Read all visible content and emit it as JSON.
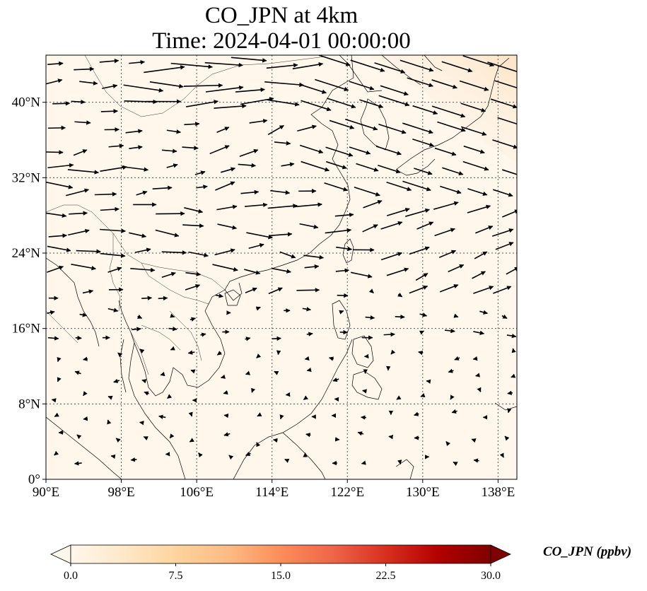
{
  "title_line1": "CO_JPN at 4km",
  "title_line2": "Time: 2024-04-01 00:00:00",
  "map": {
    "projection": "PlateCarree",
    "lon_range": [
      90,
      140
    ],
    "lat_range": [
      0,
      45
    ],
    "gridlines": "dotted",
    "lon_ticks": [
      {
        "value": 90,
        "label": "90°E"
      },
      {
        "value": 98,
        "label": "98°E"
      },
      {
        "value": 106,
        "label": "106°E"
      },
      {
        "value": 114,
        "label": "114°E"
      },
      {
        "value": 122,
        "label": "122°E"
      },
      {
        "value": 130,
        "label": "130°E"
      },
      {
        "value": 138,
        "label": "138°E"
      }
    ],
    "lat_ticks": [
      {
        "value": 0,
        "label": "0°"
      },
      {
        "value": 8,
        "label": "8°N"
      },
      {
        "value": 16,
        "label": "16°N"
      },
      {
        "value": 24,
        "label": "24°N"
      },
      {
        "value": 32,
        "label": "32°N"
      },
      {
        "value": 40,
        "label": "40°N"
      }
    ],
    "field": "CO_JPN",
    "field_level": "near zero across domain, slight increase near Japan/Korea (NE corner)",
    "vectors": "wind arrows, predominantly westerly north of ~18°N, weak and variable south"
  },
  "colorbar": {
    "colormap": "OrRd",
    "colors": [
      "#fff7ec",
      "#fee8c8",
      "#fdd49e",
      "#fdbb84",
      "#fc8d59",
      "#ef6548",
      "#d7301f",
      "#b30000",
      "#7f0000"
    ],
    "min": 0.0,
    "max": 30.0,
    "ticks": [
      "0.0",
      "7.5",
      "15.0",
      "22.5",
      "30.0"
    ],
    "label": "CO_JPN (ppbv)",
    "extend": "both"
  }
}
